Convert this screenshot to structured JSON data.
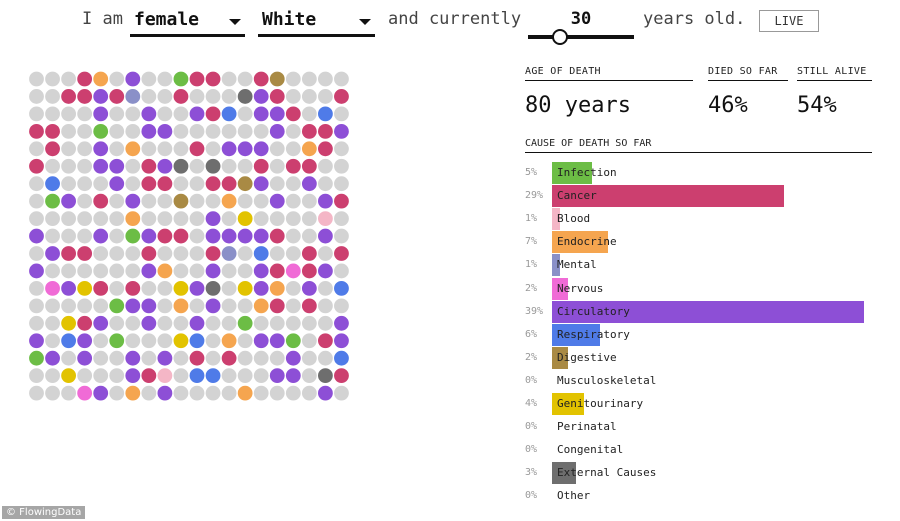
{
  "header": {
    "i_am": "I am",
    "sex_value": "female",
    "race_value": "White",
    "and_currently": "and currently",
    "age_value": "30",
    "years_old": "years old.",
    "live_label": "LIVE"
  },
  "stats": {
    "age_of_death_label": "AGE OF DEATH",
    "age_of_death_value": "80 years",
    "died_label": "DIED SO FAR",
    "died_value": "46%",
    "alive_label": "STILL ALIVE",
    "alive_value": "54%"
  },
  "causes_title": "CAUSE OF DEATH SO FAR",
  "causes": [
    {
      "pct": "5%",
      "name": "Infection",
      "value": 5,
      "color": "#6cbd45"
    },
    {
      "pct": "29%",
      "name": "Cancer",
      "value": 29,
      "color": "#cc3f6f"
    },
    {
      "pct": "1%",
      "name": "Blood",
      "value": 1,
      "color": "#f4b6c6"
    },
    {
      "pct": "7%",
      "name": "Endocrine",
      "value": 7,
      "color": "#f5a54f"
    },
    {
      "pct": "1%",
      "name": "Mental",
      "value": 1,
      "color": "#8a90c8"
    },
    {
      "pct": "2%",
      "name": "Nervous",
      "value": 2,
      "color": "#f06bd6"
    },
    {
      "pct": "39%",
      "name": "Circulatory",
      "value": 39,
      "color": "#8d4fd6"
    },
    {
      "pct": "6%",
      "name": "Respiratory",
      "value": 6,
      "color": "#4f7be8"
    },
    {
      "pct": "2%",
      "name": "Digestive",
      "value": 2,
      "color": "#a98a44"
    },
    {
      "pct": "0%",
      "name": "Musculoskeletal",
      "value": 0,
      "color": "#999999"
    },
    {
      "pct": "4%",
      "name": "Genitourinary",
      "value": 4,
      "color": "#e2c300"
    },
    {
      "pct": "0%",
      "name": "Perinatal",
      "value": 0,
      "color": "#999999"
    },
    {
      "pct": "0%",
      "name": "Congenital",
      "value": 0,
      "color": "#999999"
    },
    {
      "pct": "3%",
      "name": "External Causes",
      "value": 3,
      "color": "#6e6e6e"
    },
    {
      "pct": "0%",
      "name": "Other",
      "value": 0,
      "color": "#999999"
    }
  ],
  "dots": {
    "alive_color": "#d3d3d3",
    "columns": 20,
    "rows": 19
  },
  "credit": "© FlowingData"
}
